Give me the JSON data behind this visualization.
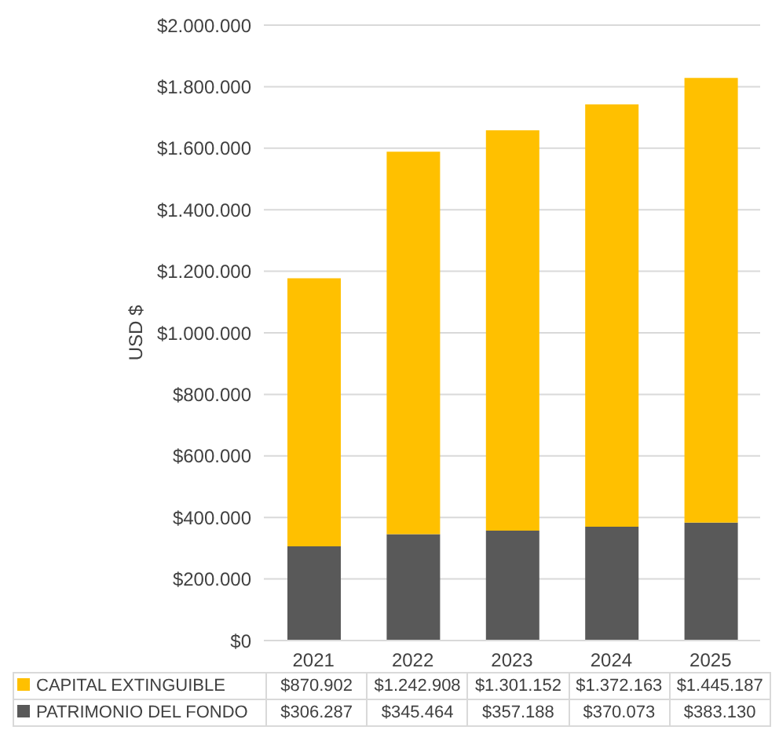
{
  "chart_data": {
    "type": "bar",
    "stacked": true,
    "ylabel": "USD $",
    "categories": [
      "2021",
      "2022",
      "2023",
      "2024",
      "2025"
    ],
    "series": [
      {
        "name": "PATRIMONIO DEL FONDO",
        "color": "#595959",
        "values": [
          306287,
          345464,
          357188,
          370073,
          383130
        ],
        "value_labels": [
          "$306.287",
          "$345.464",
          "$357.188",
          "$370.073",
          "$383.130"
        ]
      },
      {
        "name": "CAPITAL EXTINGUIBLE",
        "color": "#ffc000",
        "values": [
          870902,
          1242908,
          1301152,
          1372163,
          1445187
        ],
        "value_labels": [
          "$870.902",
          "$1.242.908",
          "$1.301.152",
          "$1.372.163",
          "$1.445.187"
        ]
      }
    ],
    "ylim": [
      0,
      2000000
    ],
    "yticks": [
      {
        "value": 0,
        "label": "$0"
      },
      {
        "value": 200000,
        "label": "$200.000"
      },
      {
        "value": 400000,
        "label": "$400.000"
      },
      {
        "value": 600000,
        "label": "$600.000"
      },
      {
        "value": 800000,
        "label": "$800.000"
      },
      {
        "value": 1000000,
        "label": "$1.000.000"
      },
      {
        "value": 1200000,
        "label": "$1.200.000"
      },
      {
        "value": 1400000,
        "label": "$1.400.000"
      },
      {
        "value": 1600000,
        "label": "$1.600.000"
      },
      {
        "value": 1800000,
        "label": "$1.800.000"
      },
      {
        "value": 2000000,
        "label": "$2.000.000"
      }
    ],
    "grid": "y",
    "legend": "bottom"
  }
}
